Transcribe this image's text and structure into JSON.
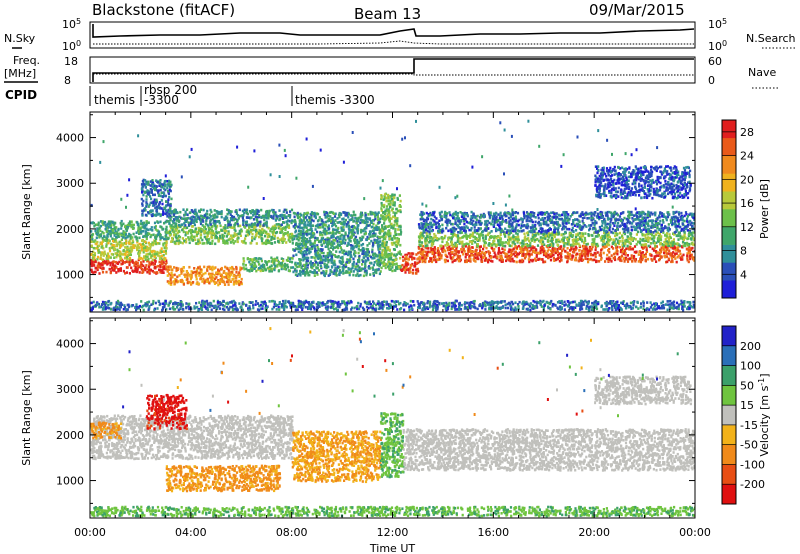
{
  "header": {
    "radar": "Blackstone (fitACF)",
    "beam": "Beam 13",
    "date": "09/Mar/2015"
  },
  "top_panels": {
    "nsky_label": "N.Sky",
    "nsearch_label": "N.Search",
    "noise_ticks": [
      "10^5",
      "10^0"
    ],
    "freq_label_line1": "Freq.",
    "freq_label_line2": "[MHz]",
    "freq_ticks": [
      "18",
      "8"
    ],
    "nave_label": "Nave",
    "nave_ticks": [
      "60",
      "0"
    ],
    "cpid_label": "CPID",
    "cpid_entries": [
      {
        "line1": "themis",
        "line2": ""
      },
      {
        "line1": "rbsp 200",
        "line2": "-3300"
      },
      {
        "line1": "themis -3300",
        "line2": ""
      }
    ]
  },
  "chart_data": [
    {
      "type": "heatmap",
      "name": "power",
      "ylabel": "Slant Range [km]",
      "xlabel": "Time UT",
      "x_ticks": [
        "00:00",
        "04:00",
        "08:00",
        "12:00",
        "16:00",
        "20:00",
        "00:00"
      ],
      "xlim_hours": [
        0,
        24
      ],
      "y_ticks": [
        1000,
        2000,
        3000,
        4000
      ],
      "ylim": [
        180,
        4560
      ],
      "colorbar": {
        "label": "Power [dB]",
        "ticks": [
          4,
          8,
          12,
          16,
          20,
          24,
          28
        ],
        "range": [
          0,
          30
        ],
        "colors": [
          "#1f1fd8",
          "#2a4fb8",
          "#2f8f9a",
          "#3fa66a",
          "#6cc04a",
          "#b8c93a",
          "#f0b21e",
          "#f08a1e",
          "#e95a1a",
          "#e01f1f"
        ]
      },
      "bands": [
        {
          "t0": 0.0,
          "t1": 3.0,
          "r0": 1050,
          "r1": 1350,
          "power": 28
        },
        {
          "t0": 0.0,
          "t1": 3.0,
          "r0": 1350,
          "r1": 1800,
          "power": 16
        },
        {
          "t0": 0.0,
          "t1": 3.0,
          "r0": 1800,
          "r1": 2200,
          "power": 10
        },
        {
          "t0": 3.0,
          "t1": 8.0,
          "r0": 1700,
          "r1": 2100,
          "power": 14
        },
        {
          "t0": 3.0,
          "t1": 8.0,
          "r0": 2100,
          "r1": 2450,
          "power": 8
        },
        {
          "t0": 3.0,
          "t1": 6.0,
          "r0": 800,
          "r1": 1200,
          "power": 22
        },
        {
          "t0": 6.0,
          "t1": 8.0,
          "r0": 1100,
          "r1": 1400,
          "power": 12
        },
        {
          "t0": 8.0,
          "t1": 11.5,
          "r0": 1000,
          "r1": 2400,
          "power": 9
        },
        {
          "t0": 11.5,
          "t1": 12.3,
          "r0": 1100,
          "r1": 2800,
          "power": 13
        },
        {
          "t0": 12.3,
          "t1": 13.0,
          "r0": 1050,
          "r1": 1500,
          "power": 26
        },
        {
          "t0": 13.0,
          "t1": 24.0,
          "r0": 1300,
          "r1": 1650,
          "power": 26
        },
        {
          "t0": 13.0,
          "t1": 24.0,
          "r0": 1650,
          "r1": 1950,
          "power": 14
        },
        {
          "t0": 13.0,
          "t1": 24.0,
          "r0": 1950,
          "r1": 2400,
          "power": 6
        },
        {
          "t0": 2.0,
          "t1": 3.2,
          "r0": 2300,
          "r1": 3100,
          "power": 6
        },
        {
          "t0": 20.0,
          "t1": 23.8,
          "r0": 2700,
          "r1": 3400,
          "power": 4
        },
        {
          "t0": 0.0,
          "t1": 24.0,
          "r0": 250,
          "r1": 450,
          "power": 6
        }
      ]
    },
    {
      "type": "heatmap",
      "name": "velocity",
      "ylabel": "Slant Range [km]",
      "xlabel": "Time UT",
      "x_ticks": [
        "00:00",
        "04:00",
        "08:00",
        "12:00",
        "16:00",
        "20:00",
        "00:00"
      ],
      "xlim_hours": [
        0,
        24
      ],
      "y_ticks": [
        1000,
        2000,
        3000,
        4000
      ],
      "ylim": [
        180,
        4560
      ],
      "colorbar": {
        "label": "Velocity [m s^-1]",
        "ticks": [
          200,
          100,
          50,
          15,
          -15,
          -50,
          -100,
          -200
        ],
        "colors": [
          "#2222c8",
          "#2a6fb8",
          "#3ba06a",
          "#6fc43f",
          "#c0c0bc",
          "#f2b21a",
          "#f08a1a",
          "#e84e14",
          "#e01010"
        ]
      },
      "bands": [
        {
          "t0": 0.0,
          "t1": 8.0,
          "r0": 1500,
          "r1": 2450,
          "velocity": 0
        },
        {
          "t0": 0.0,
          "t1": 1.2,
          "r0": 1950,
          "r1": 2300,
          "velocity": -60
        },
        {
          "t0": 2.2,
          "t1": 3.8,
          "r0": 2150,
          "r1": 2900,
          "velocity": -220
        },
        {
          "t0": 3.0,
          "t1": 7.5,
          "r0": 800,
          "r1": 1350,
          "velocity": -60
        },
        {
          "t0": 8.0,
          "t1": 11.5,
          "r0": 1000,
          "r1": 2100,
          "velocity": -50
        },
        {
          "t0": 11.5,
          "t1": 12.4,
          "r0": 1100,
          "r1": 2500,
          "velocity": 40
        },
        {
          "t0": 12.4,
          "t1": 24.0,
          "r0": 1250,
          "r1": 2150,
          "velocity": 0
        },
        {
          "t0": 20.0,
          "t1": 23.8,
          "r0": 2700,
          "r1": 3300,
          "velocity": 0
        },
        {
          "t0": 0.0,
          "t1": 24.0,
          "r0": 250,
          "r1": 450,
          "velocity": 40
        }
      ]
    }
  ]
}
